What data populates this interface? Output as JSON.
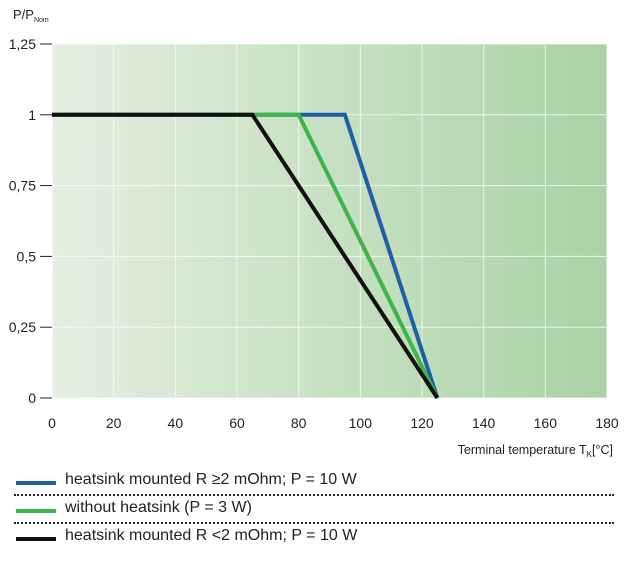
{
  "chart_data": {
    "type": "line",
    "ylabel": {
      "main": "P/P",
      "sub": "Nom"
    },
    "xlabel": {
      "main": "Terminal temperature T",
      "sub": "K",
      "unit": "[°C]"
    },
    "xlim": [
      0,
      180
    ],
    "ylim": [
      0,
      1.25
    ],
    "xticks": [
      0,
      20,
      40,
      60,
      80,
      100,
      120,
      140,
      160,
      180
    ],
    "xtick_labels": [
      "0",
      "20",
      "40",
      "60",
      "80",
      "100",
      "120",
      "140",
      "160",
      "180"
    ],
    "yticks": [
      0,
      0.25,
      0.5,
      0.75,
      1,
      1.25
    ],
    "ytick_labels": [
      "0",
      "0,25",
      "0,5",
      "0,75",
      "1",
      "1,25"
    ],
    "grid": true,
    "legend_position": "bottom",
    "series": [
      {
        "name": "heatsink mounted  R ≥2 mOhm; P = 10 W",
        "color": "#1f5fa6",
        "x": [
          0,
          95,
          125
        ],
        "y": [
          1,
          1,
          0
        ]
      },
      {
        "name": "without heatsink (P = 3 W)",
        "color": "#3db54a",
        "x": [
          0,
          80,
          125
        ],
        "y": [
          1,
          1,
          0
        ]
      },
      {
        "name": "heatsink mounted  R <2 mOhm; P = 10 W",
        "color": "#111111",
        "x": [
          0,
          65,
          125
        ],
        "y": [
          1,
          1,
          0
        ]
      }
    ]
  }
}
